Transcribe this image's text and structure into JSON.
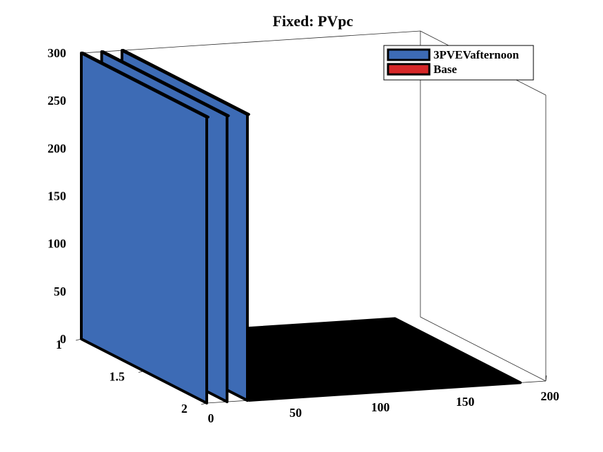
{
  "chart_data": {
    "type": "bar3d",
    "title": "Fixed: PVpc",
    "xlabel": "",
    "ylabel": "",
    "zlabel": "",
    "xlim": [
      0,
      200
    ],
    "ylim": [
      1,
      2
    ],
    "zlim": [
      0,
      300
    ],
    "x_ticks": [
      "0",
      "50",
      "100",
      "150",
      "200"
    ],
    "y_ticks": [
      "1",
      "1.5",
      "2"
    ],
    "z_ticks": [
      "0",
      "50",
      "100",
      "150",
      "200",
      "250",
      "300"
    ],
    "legend": {
      "placement": "top-right",
      "entries": [
        "3PVEVafternoon",
        "Base"
      ]
    },
    "series": [
      {
        "name": "3PVEVafternoon",
        "color": "#3d6bb5",
        "bars": [
          {
            "x": 0,
            "z": 300
          },
          {
            "x": 12,
            "z": 300
          },
          {
            "x": 24,
            "z": 300
          }
        ]
      },
      {
        "name": "Base",
        "color": "#d62728",
        "bars": [
          {
            "x_range": [
              25,
              185
            ],
            "z": 0
          }
        ]
      }
    ]
  }
}
